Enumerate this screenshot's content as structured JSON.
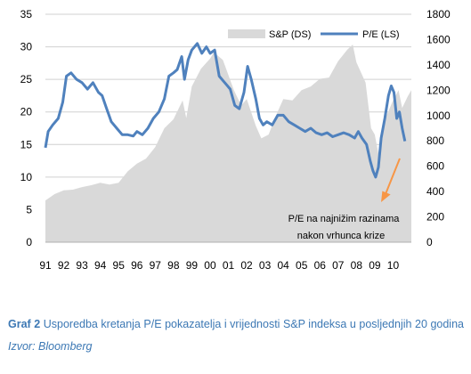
{
  "chart_data": {
    "type": "line",
    "x_ticks": [
      "91",
      "92",
      "93",
      "94",
      "95",
      "96",
      "97",
      "98",
      "99",
      "00",
      "01",
      "02",
      "03",
      "04",
      "05",
      "06",
      "07",
      "08",
      "09",
      "10"
    ],
    "x_range": [
      1991.0,
      2011.0
    ],
    "y_left": {
      "ticks": [
        "0",
        "5",
        "10",
        "15",
        "20",
        "25",
        "30",
        "35"
      ],
      "lim": [
        0,
        35
      ]
    },
    "y_right": {
      "ticks": [
        "0",
        "200",
        "400",
        "600",
        "800",
        "1000",
        "1200",
        "1400",
        "1600",
        "1800"
      ],
      "lim": [
        0,
        1800
      ]
    },
    "grid": true,
    "legend_position": "top-right",
    "series": [
      {
        "name": "S&P (DS)",
        "axis": "right",
        "style": "area",
        "color": "#d9d9d9",
        "points": [
          [
            1991.0,
            330
          ],
          [
            1991.5,
            380
          ],
          [
            1992.0,
            410
          ],
          [
            1992.5,
            415
          ],
          [
            1993.0,
            435
          ],
          [
            1993.5,
            450
          ],
          [
            1994.0,
            470
          ],
          [
            1994.5,
            455
          ],
          [
            1995.0,
            470
          ],
          [
            1995.5,
            560
          ],
          [
            1996.0,
            620
          ],
          [
            1996.5,
            660
          ],
          [
            1997.0,
            750
          ],
          [
            1997.5,
            900
          ],
          [
            1998.0,
            970
          ],
          [
            1998.5,
            1120
          ],
          [
            1998.7,
            980
          ],
          [
            1999.0,
            1230
          ],
          [
            1999.5,
            1370
          ],
          [
            2000.0,
            1450
          ],
          [
            2000.2,
            1500
          ],
          [
            2000.7,
            1440
          ],
          [
            2001.0,
            1320
          ],
          [
            2001.3,
            1200
          ],
          [
            2001.7,
            1080
          ],
          [
            2002.0,
            1130
          ],
          [
            2002.5,
            920
          ],
          [
            2002.8,
            820
          ],
          [
            2003.2,
            850
          ],
          [
            2003.6,
            1000
          ],
          [
            2004.0,
            1130
          ],
          [
            2004.5,
            1120
          ],
          [
            2005.0,
            1200
          ],
          [
            2005.5,
            1230
          ],
          [
            2006.0,
            1290
          ],
          [
            2006.5,
            1300
          ],
          [
            2007.0,
            1430
          ],
          [
            2007.5,
            1520
          ],
          [
            2007.8,
            1560
          ],
          [
            2008.0,
            1420
          ],
          [
            2008.5,
            1260
          ],
          [
            2008.8,
            900
          ],
          [
            2009.0,
            850
          ],
          [
            2009.2,
            700
          ],
          [
            2009.5,
            950
          ],
          [
            2010.0,
            1120
          ],
          [
            2010.3,
            1200
          ],
          [
            2010.5,
            1060
          ],
          [
            2010.8,
            1150
          ],
          [
            2011.0,
            1200
          ]
        ]
      },
      {
        "name": "P/E (LS)",
        "axis": "left",
        "style": "line",
        "color": "#4f81bd",
        "points": [
          [
            1991.0,
            14.5
          ],
          [
            1991.15,
            17.0
          ],
          [
            1991.4,
            18.0
          ],
          [
            1991.7,
            19.0
          ],
          [
            1991.95,
            21.5
          ],
          [
            1992.15,
            25.5
          ],
          [
            1992.4,
            26.0
          ],
          [
            1992.7,
            25.0
          ],
          [
            1993.0,
            24.5
          ],
          [
            1993.3,
            23.5
          ],
          [
            1993.6,
            24.5
          ],
          [
            1993.9,
            23.0
          ],
          [
            1994.1,
            22.5
          ],
          [
            1994.35,
            20.5
          ],
          [
            1994.6,
            18.5
          ],
          [
            1994.9,
            17.5
          ],
          [
            1995.2,
            16.5
          ],
          [
            1995.5,
            16.5
          ],
          [
            1995.8,
            16.3
          ],
          [
            1996.0,
            17.0
          ],
          [
            1996.3,
            16.5
          ],
          [
            1996.6,
            17.5
          ],
          [
            1996.9,
            19.0
          ],
          [
            1997.2,
            20.0
          ],
          [
            1997.5,
            22.0
          ],
          [
            1997.75,
            25.5
          ],
          [
            1998.0,
            26.0
          ],
          [
            1998.2,
            26.5
          ],
          [
            1998.45,
            28.5
          ],
          [
            1998.6,
            25.0
          ],
          [
            1998.8,
            28.0
          ],
          [
            1999.0,
            29.5
          ],
          [
            1999.3,
            30.5
          ],
          [
            1999.55,
            29.0
          ],
          [
            1999.8,
            30.0
          ],
          [
            2000.0,
            29.0
          ],
          [
            2000.25,
            29.5
          ],
          [
            2000.5,
            25.5
          ],
          [
            2000.8,
            24.5
          ],
          [
            2001.1,
            23.5
          ],
          [
            2001.35,
            21.0
          ],
          [
            2001.6,
            20.5
          ],
          [
            2001.85,
            23.0
          ],
          [
            2002.05,
            27.0
          ],
          [
            2002.25,
            25.0
          ],
          [
            2002.5,
            22.0
          ],
          [
            2002.7,
            19.0
          ],
          [
            2002.9,
            18.0
          ],
          [
            2003.1,
            18.5
          ],
          [
            2003.4,
            18.0
          ],
          [
            2003.7,
            19.5
          ],
          [
            2004.0,
            19.5
          ],
          [
            2004.3,
            18.5
          ],
          [
            2004.6,
            18.0
          ],
          [
            2004.9,
            17.5
          ],
          [
            2005.2,
            17.0
          ],
          [
            2005.5,
            17.5
          ],
          [
            2005.8,
            16.8
          ],
          [
            2006.1,
            16.5
          ],
          [
            2006.4,
            16.8
          ],
          [
            2006.7,
            16.2
          ],
          [
            2007.0,
            16.5
          ],
          [
            2007.3,
            16.8
          ],
          [
            2007.6,
            16.5
          ],
          [
            2007.9,
            16.0
          ],
          [
            2008.1,
            17.0
          ],
          [
            2008.3,
            16.0
          ],
          [
            2008.55,
            15.0
          ],
          [
            2008.75,
            12.5
          ],
          [
            2008.9,
            11.0
          ],
          [
            2009.05,
            10.0
          ],
          [
            2009.2,
            11.5
          ],
          [
            2009.35,
            16.0
          ],
          [
            2009.55,
            19.0
          ],
          [
            2009.75,
            22.5
          ],
          [
            2009.9,
            24.0
          ],
          [
            2010.05,
            23.0
          ],
          [
            2010.2,
            19.0
          ],
          [
            2010.35,
            20.0
          ],
          [
            2010.5,
            17.5
          ],
          [
            2010.65,
            15.5
          ]
        ]
      }
    ],
    "annotation": {
      "lines": [
        "P/E na najnižim razinama",
        "nakon vrhunca krize"
      ],
      "arrow_color": "#f79646"
    }
  },
  "caption": {
    "label": "Graf 2",
    "text": "Usporedba kretanja P/E pokazatelja i vrijednosti S&P indeksa u posljednjih 20 godina",
    "source": "Izvor: Bloomberg"
  }
}
